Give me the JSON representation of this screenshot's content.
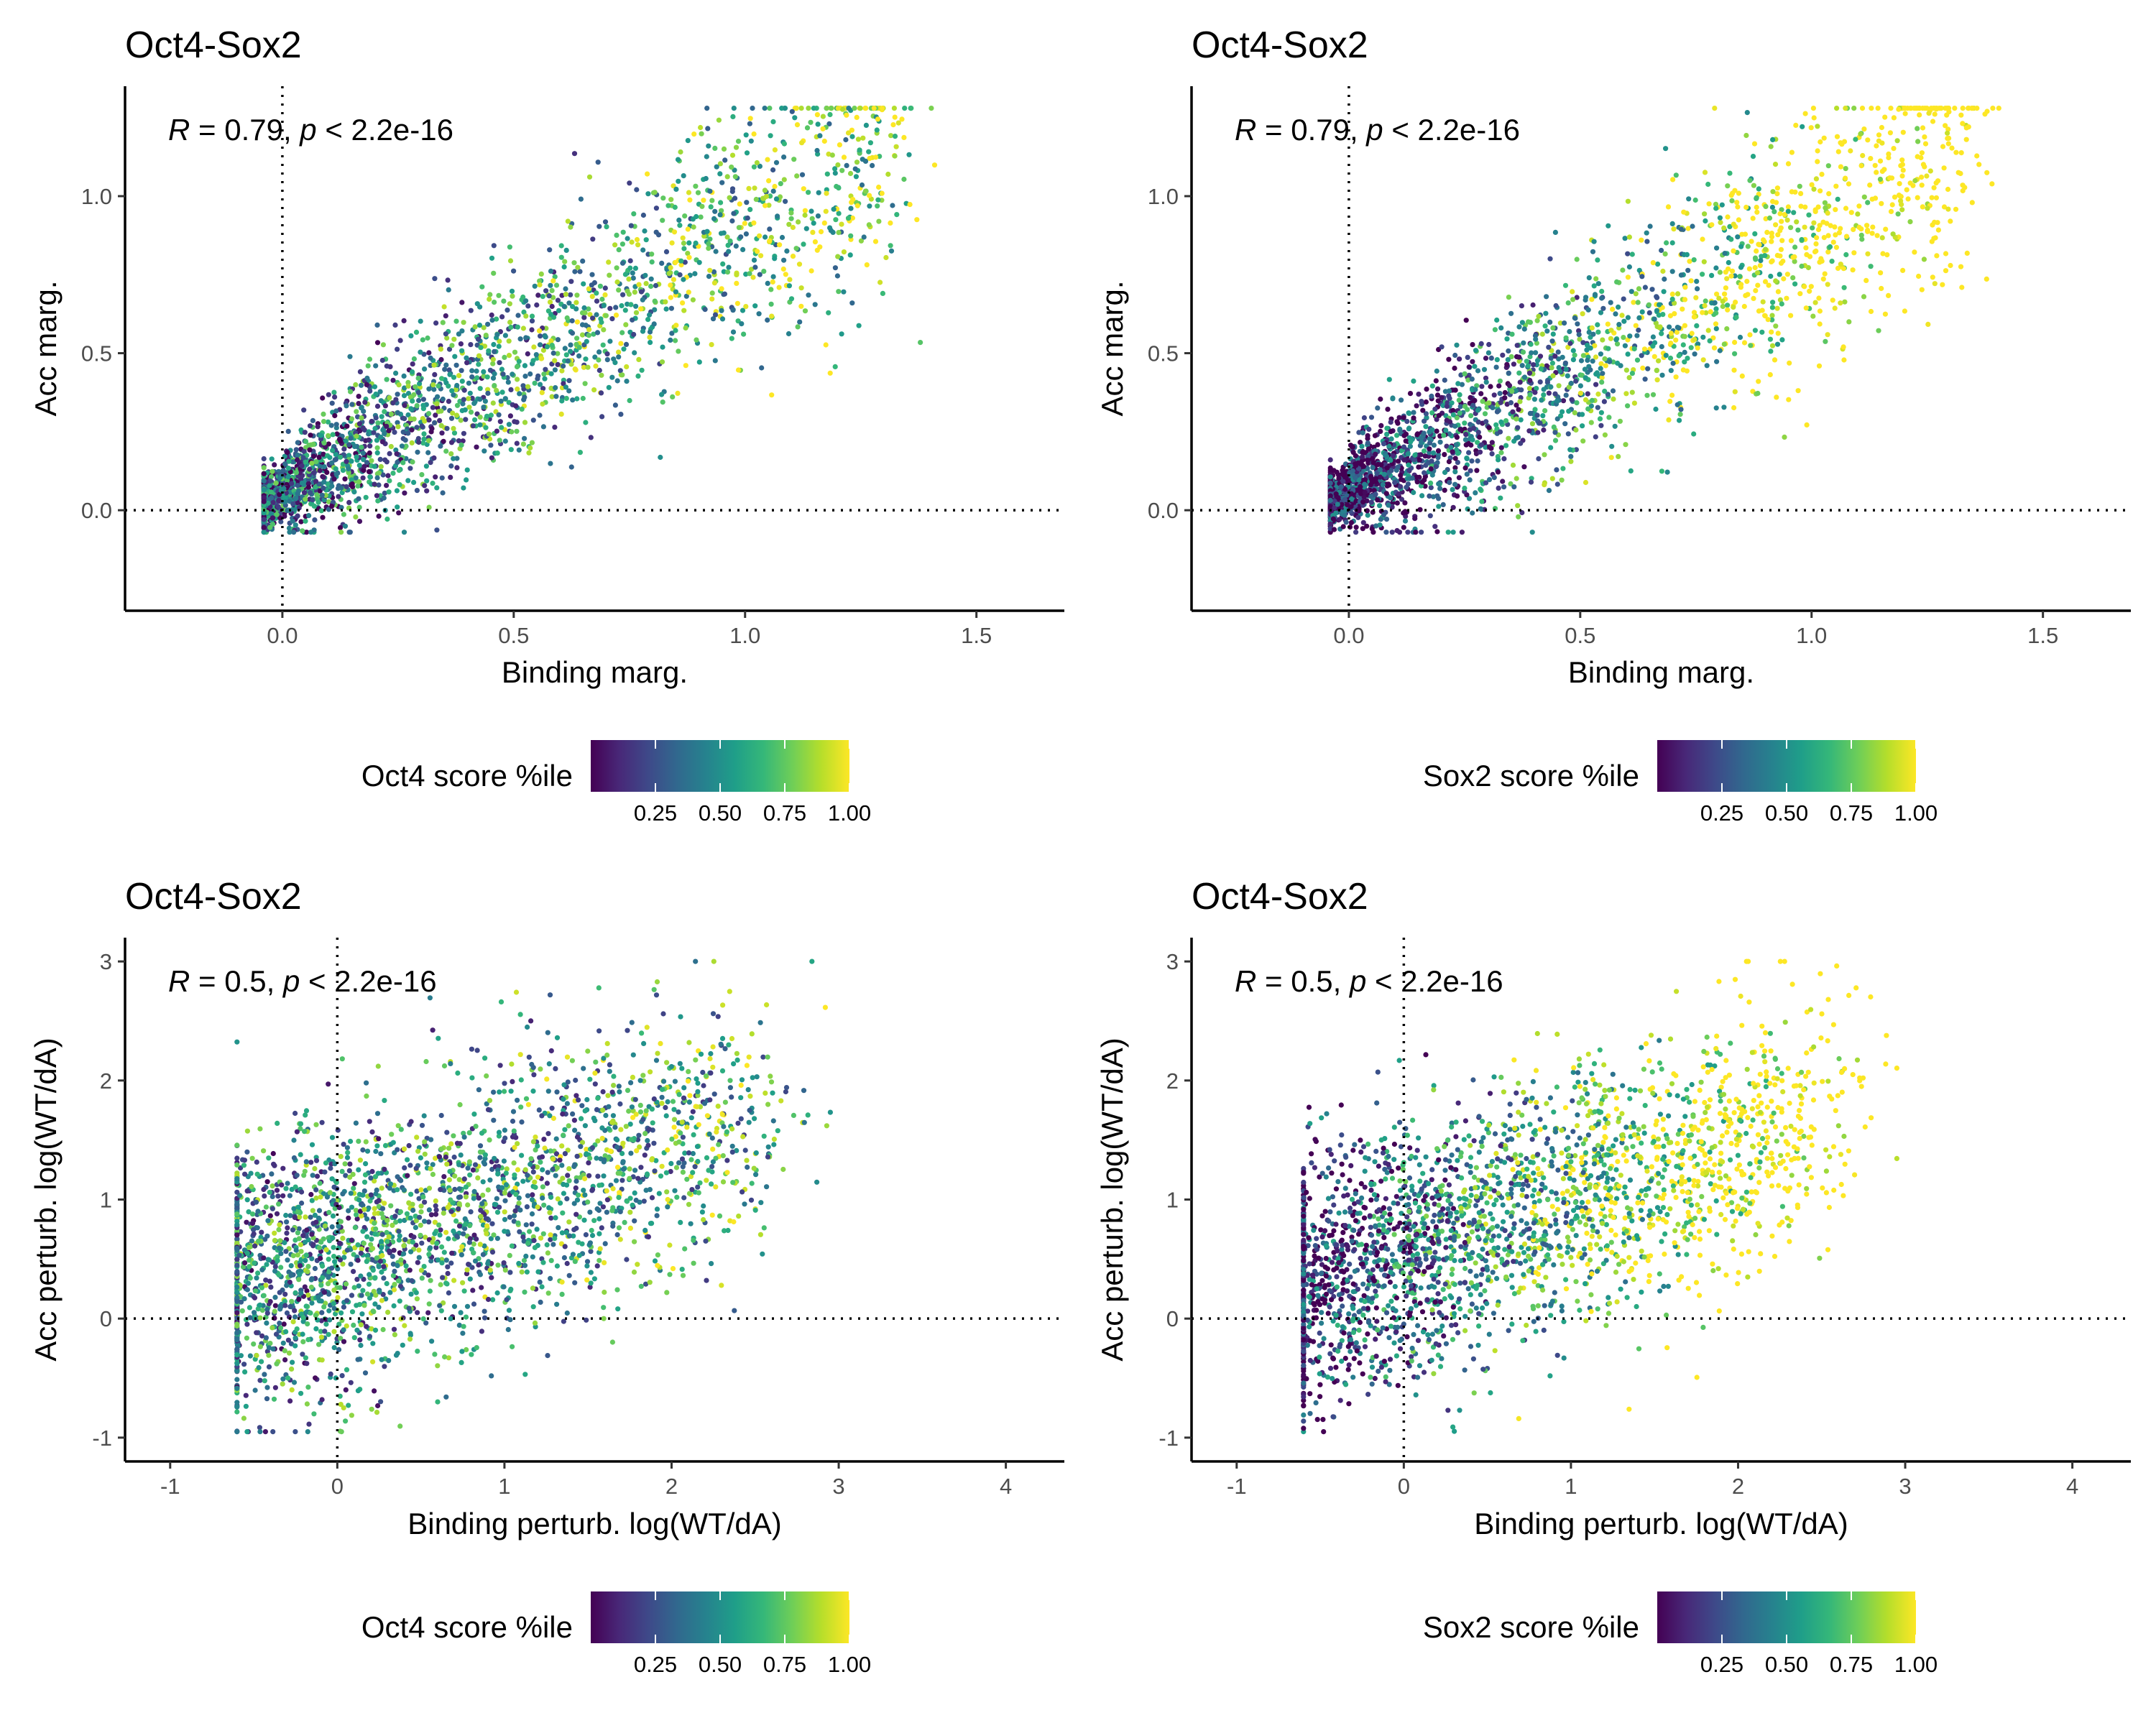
{
  "figure": {
    "colors": {
      "viridis": [
        "#440154",
        "#482878",
        "#3e4989",
        "#31688e",
        "#26828e",
        "#1f9e89",
        "#35b779",
        "#6ece58",
        "#b5de2b",
        "#fde725"
      ],
      "axis": "#000000",
      "reference_line": "#000000"
    }
  },
  "chart_data": [
    {
      "type": "scatter",
      "title": "Oct4-Sox2",
      "xlabel": "Binding marg.",
      "ylabel": "Acc marg.",
      "xlim": [
        -0.34,
        1.69
      ],
      "ylim": [
        -0.32,
        1.35
      ],
      "xticks": [
        0.0,
        0.5,
        1.0,
        1.5
      ],
      "xtick_labels": [
        "0.0",
        "0.5",
        "1.0",
        "1.5"
      ],
      "yticks": [
        0.0,
        0.5,
        1.0
      ],
      "ytick_labels": [
        "0.0",
        "0.5",
        "1.0"
      ],
      "reference_lines": {
        "x": 0,
        "y": 0
      },
      "annotation": {
        "r_label": "R",
        "r_text": " = 0.79, ",
        "p_label": "p",
        "p_text": " < 2.2e-16"
      },
      "color_by": "Oct4 score %ile",
      "colorbar": {
        "title": "Oct4 score %ile",
        "ticks": [
          0.25,
          0.5,
          0.75,
          1.0
        ],
        "tick_labels": [
          "0.25",
          "0.50",
          "0.75",
          "1.00"
        ],
        "range": [
          0,
          1
        ]
      },
      "cloud": {
        "n": 2600,
        "x_range": [
          -0.04,
          1.58
        ],
        "x_skew": 2.1,
        "slope": 0.82,
        "intercept": 0.06,
        "sd_x": 0.02,
        "sd_tail": 0.17,
        "corr": 0.22,
        "y_range": [
          -0.07,
          1.28
        ],
        "x_sd": 0.04,
        "color_trend": 0.55
      },
      "grid": false,
      "legend_position": "bottom"
    },
    {
      "type": "scatter",
      "title": "Oct4-Sox2",
      "xlabel": "Binding marg.",
      "ylabel": "Acc marg.",
      "xlim": [
        -0.34,
        1.69
      ],
      "ylim": [
        -0.32,
        1.35
      ],
      "xticks": [
        0.0,
        0.5,
        1.0,
        1.5
      ],
      "xtick_labels": [
        "0.0",
        "0.5",
        "1.0",
        "1.5"
      ],
      "yticks": [
        0.0,
        0.5,
        1.0
      ],
      "ytick_labels": [
        "0.0",
        "0.5",
        "1.0"
      ],
      "reference_lines": {
        "x": 0,
        "y": 0
      },
      "annotation": {
        "r_label": "R",
        "r_text": " = 0.79, ",
        "p_label": "p",
        "p_text": " < 2.2e-16"
      },
      "color_by": "Sox2 score %ile",
      "colorbar": {
        "title": "Sox2 score %ile",
        "ticks": [
          0.25,
          0.5,
          0.75,
          1.0
        ],
        "tick_labels": [
          "0.25",
          "0.50",
          "0.75",
          "1.00"
        ],
        "range": [
          0,
          1
        ]
      },
      "cloud": {
        "n": 2600,
        "x_range": [
          -0.04,
          1.58
        ],
        "x_skew": 2.1,
        "slope": 0.82,
        "intercept": 0.06,
        "sd_x": 0.02,
        "sd_tail": 0.17,
        "corr": 0.22,
        "y_range": [
          -0.07,
          1.28
        ],
        "x_sd": 0.04,
        "color_trend": 1.5
      },
      "grid": false,
      "legend_position": "bottom"
    },
    {
      "type": "scatter",
      "title": "Oct4-Sox2",
      "xlabel": "Binding perturb. log(WT/dA)",
      "ylabel": "Acc perturb. log(WT/dA)",
      "xlim": [
        -1.27,
        4.35
      ],
      "ylim": [
        -1.2,
        3.2
      ],
      "xticks": [
        -1,
        0,
        1,
        2,
        3,
        4
      ],
      "xtick_labels": [
        "-1",
        "0",
        "1",
        "2",
        "3",
        "4"
      ],
      "yticks": [
        -1,
        0,
        1,
        2,
        3
      ],
      "ytick_labels": [
        "-1",
        "0",
        "1",
        "2",
        "3"
      ],
      "reference_lines": {
        "x": 0,
        "y": 0
      },
      "annotation": {
        "r_label": "R",
        "r_text": " = 0.5, ",
        "p_label": "p",
        "p_text": " < 2.2e-16"
      },
      "color_by": "Oct4 score %ile",
      "colorbar": {
        "title": "Oct4 score %ile",
        "ticks": [
          0.25,
          0.5,
          0.75,
          1.0
        ],
        "tick_labels": [
          "0.25",
          "0.50",
          "0.75",
          "1.00"
        ],
        "range": [
          0,
          1
        ]
      },
      "cloud": {
        "n": 2600,
        "x_range": [
          -0.6,
          2.95
        ],
        "x_skew": 1.5,
        "slope": 0.45,
        "intercept": 0.55,
        "sd_x": 0.55,
        "sd_tail": 0.0,
        "corr": 0.0,
        "y_range": [
          -0.95,
          3.0
        ],
        "x_sd": 0.28,
        "color_trend": 0.2
      },
      "grid": false,
      "legend_position": "bottom"
    },
    {
      "type": "scatter",
      "title": "Oct4-Sox2",
      "xlabel": "Binding perturb. log(WT/dA)",
      "ylabel": "Acc perturb. log(WT/dA)",
      "xlim": [
        -1.27,
        4.35
      ],
      "ylim": [
        -1.2,
        3.2
      ],
      "xticks": [
        -1,
        0,
        1,
        2,
        3,
        4
      ],
      "xtick_labels": [
        "-1",
        "0",
        "1",
        "2",
        "3",
        "4"
      ],
      "yticks": [
        -1,
        0,
        1,
        2,
        3
      ],
      "ytick_labels": [
        "-1",
        "0",
        "1",
        "2",
        "3"
      ],
      "reference_lines": {
        "x": 0,
        "y": 0
      },
      "annotation": {
        "r_label": "R",
        "r_text": " = 0.5, ",
        "p_label": "p",
        "p_text": " < 2.2e-16"
      },
      "color_by": "Sox2 score %ile",
      "colorbar": {
        "title": "Sox2 score %ile",
        "ticks": [
          0.25,
          0.5,
          0.75,
          1.0
        ],
        "tick_labels": [
          "0.25",
          "0.50",
          "0.75",
          "1.00"
        ],
        "range": [
          0,
          1
        ]
      },
      "cloud": {
        "n": 2600,
        "x_range": [
          -0.6,
          2.95
        ],
        "x_skew": 1.5,
        "slope": 0.45,
        "intercept": 0.55,
        "sd_x": 0.55,
        "sd_tail": 0.0,
        "corr": 0.0,
        "y_range": [
          -0.95,
          3.0
        ],
        "x_sd": 0.28,
        "color_trend": 1.2
      },
      "grid": false,
      "legend_position": "bottom"
    }
  ]
}
